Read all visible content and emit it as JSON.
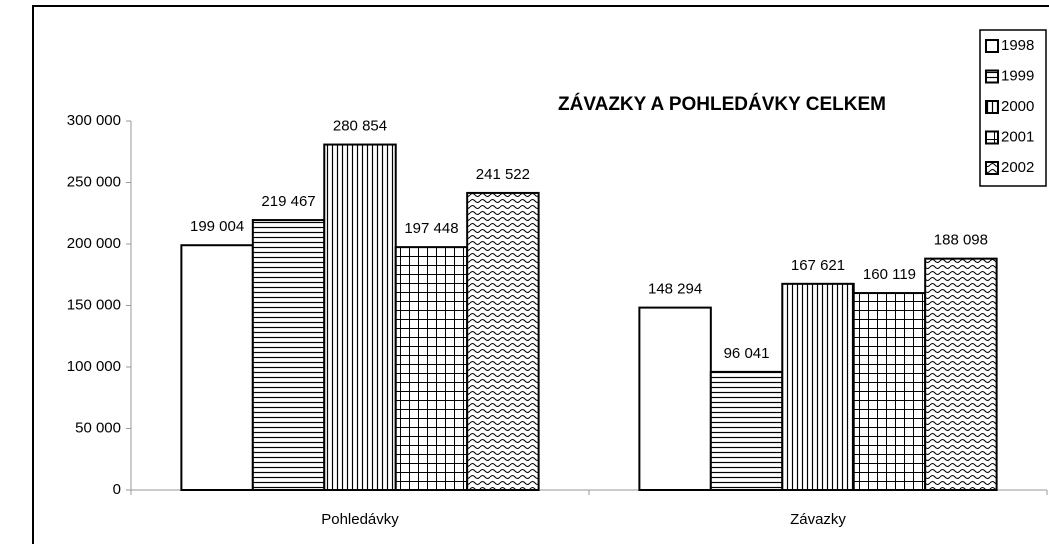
{
  "chart_data": {
    "type": "bar",
    "title": "ZÁVAZKY A POHLEDÁVKY CELKEM",
    "categories": [
      "Pohledávky",
      "Závazky"
    ],
    "series": [
      {
        "name": "1998",
        "color": "#ffffff",
        "pattern": "none",
        "values": [
          199004,
          148294
        ],
        "value_labels": [
          "199 004",
          "148 294"
        ]
      },
      {
        "name": "1999",
        "color": "#ffffff",
        "pattern": "horizontal",
        "values": [
          219467,
          96041
        ],
        "value_labels": [
          "219 467",
          "96 041"
        ]
      },
      {
        "name": "2000",
        "color": "#ffffff",
        "pattern": "vertical",
        "values": [
          280854,
          167621
        ],
        "value_labels": [
          "280 854",
          "167 621"
        ]
      },
      {
        "name": "2001",
        "color": "#ffffff",
        "pattern": "grid",
        "values": [
          197448,
          160119
        ],
        "value_labels": [
          "197 448",
          "160 119"
        ]
      },
      {
        "name": "2002",
        "color": "#ffffff",
        "pattern": "wave",
        "values": [
          241522,
          188098
        ],
        "value_labels": [
          "241 522",
          "188 098"
        ]
      }
    ],
    "ylim": [
      0,
      300000
    ],
    "yticks": [
      0,
      {
        "value": 50000,
        "label": "50 000"
      },
      {
        "value": 100000,
        "label": "100 000"
      },
      {
        "value": 150000,
        "label": "150 000"
      },
      {
        "value": 200000,
        "label": "200 000"
      },
      {
        "value": 250000,
        "label": "250 000"
      },
      {
        "value": 300000,
        "label": "300 000"
      }
    ],
    "grid": false,
    "legend": "top-right"
  }
}
